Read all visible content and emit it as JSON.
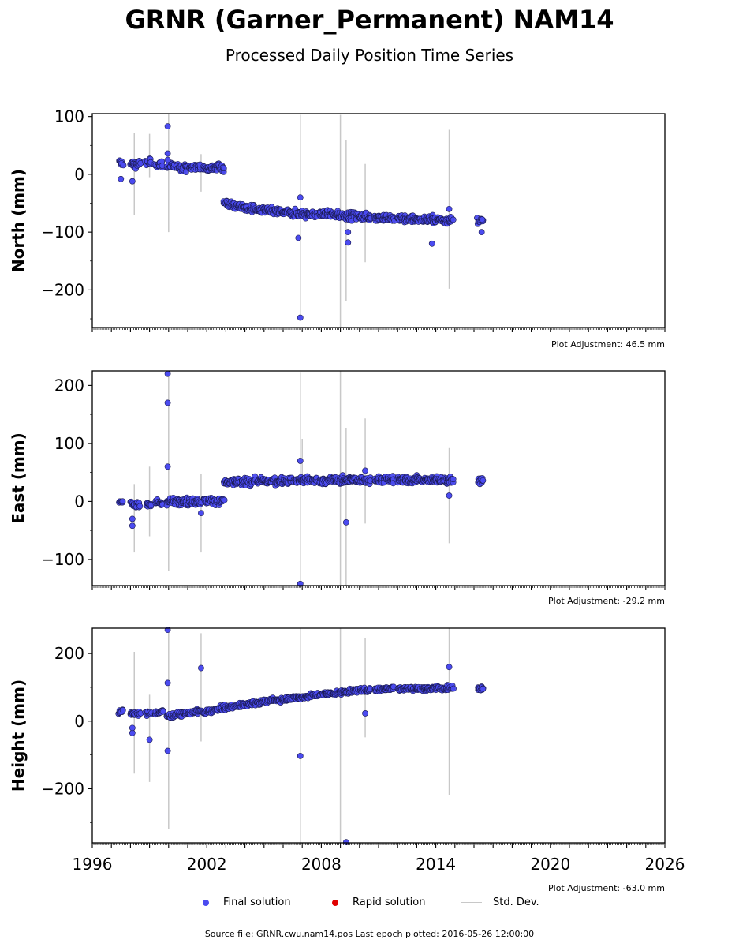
{
  "title": "GRNR (Garner_Permanent) NAM14",
  "subtitle": "Processed Daily Position Time Series",
  "footer": {
    "source": "Source file: GRNR.cwu.nam14.pos  Last epoch plotted: 2016-05-26 12:00:00"
  },
  "legend": {
    "final": "Final solution",
    "rapid": "Rapid solution",
    "stddev": "Std. Dev."
  },
  "colors": {
    "final": "#4b4bf0",
    "rapid": "#e00000",
    "stddev": "#c8c8c8"
  },
  "chart_data": [
    {
      "type": "scatter",
      "ylabel": "North (mm)",
      "adjustment": "Plot Adjustment: 46.5 mm",
      "xlim": [
        1996,
        2026
      ],
      "ylim": [
        -265,
        105
      ],
      "yticks": [
        100,
        0,
        -100,
        -200
      ],
      "ytick_labels": [
        "100",
        "0",
        "−100",
        "−200"
      ],
      "segments": [
        {
          "x": [
            1997.4,
            1997.6
          ],
          "y": [
            20,
            20
          ]
        },
        {
          "x": [
            1998.0,
            1998.5
          ],
          "y": [
            18,
            18
          ]
        },
        {
          "x": [
            1998.8,
            1999.1
          ],
          "y": [
            20,
            20
          ]
        },
        {
          "x": [
            1999.3,
            1999.7
          ],
          "y": [
            18,
            18
          ]
        },
        {
          "x": [
            1999.9,
            2000.6
          ],
          "y": [
            14,
            12
          ]
        },
        {
          "x": [
            2000.6,
            2001.7
          ],
          "y": [
            12,
            12
          ]
        },
        {
          "x": [
            2001.8,
            2002.9
          ],
          "y": [
            12,
            12
          ]
        },
        {
          "x": [
            2002.9,
            2003.5
          ],
          "y": [
            -48,
            -55
          ]
        },
        {
          "x": [
            2003.5,
            2005.0
          ],
          "y": [
            -55,
            -63
          ]
        },
        {
          "x": [
            2005.0,
            2006.8
          ],
          "y": [
            -63,
            -68
          ]
        },
        {
          "x": [
            2006.8,
            2007.8
          ],
          "y": [
            -68,
            -70
          ]
        },
        {
          "x": [
            2007.9,
            2009.5
          ],
          "y": [
            -68,
            -72
          ]
        },
        {
          "x": [
            2009.5,
            2010.6
          ],
          "y": [
            -72,
            -74
          ]
        },
        {
          "x": [
            2010.8,
            2011.8
          ],
          "y": [
            -74,
            -76
          ]
        },
        {
          "x": [
            2012.0,
            2013.2
          ],
          "y": [
            -76,
            -78
          ]
        },
        {
          "x": [
            2013.3,
            2014.9
          ],
          "y": [
            -78,
            -80
          ]
        },
        {
          "x": [
            2016.2,
            2016.5
          ],
          "y": [
            -80,
            -82
          ]
        }
      ],
      "outliers": [
        {
          "x": 1999.95,
          "y": 83
        },
        {
          "x": 1999.95,
          "y": 36
        },
        {
          "x": 1999.95,
          "y": 25
        },
        {
          "x": 1998.1,
          "y": -12
        },
        {
          "x": 1997.5,
          "y": -8
        },
        {
          "x": 2006.9,
          "y": -40
        },
        {
          "x": 2006.8,
          "y": -110
        },
        {
          "x": 2006.9,
          "y": -248
        },
        {
          "x": 2009.4,
          "y": -118
        },
        {
          "x": 2009.4,
          "y": -100
        },
        {
          "x": 2014.7,
          "y": -60
        },
        {
          "x": 2013.8,
          "y": -120
        },
        {
          "x": 2016.4,
          "y": -100
        }
      ],
      "errorbars": [
        {
          "x": 1998.2,
          "lo": -70,
          "hi": 72
        },
        {
          "x": 1999.0,
          "lo": -5,
          "hi": 70
        },
        {
          "x": 2000.0,
          "lo": -100,
          "hi": 105
        },
        {
          "x": 2001.7,
          "lo": -30,
          "hi": 35
        },
        {
          "x": 2006.9,
          "lo": -250,
          "hi": 103
        },
        {
          "x": 2009.0,
          "lo": -265,
          "hi": 103
        },
        {
          "x": 2009.3,
          "lo": -220,
          "hi": 60
        },
        {
          "x": 2010.3,
          "lo": -152,
          "hi": 18
        },
        {
          "x": 2014.7,
          "lo": -198,
          "hi": 77
        }
      ]
    },
    {
      "type": "scatter",
      "ylabel": "East (mm)",
      "adjustment": "Plot Adjustment: -29.2 mm",
      "xlim": [
        1996,
        2026
      ],
      "ylim": [
        -145,
        225
      ],
      "yticks": [
        200,
        100,
        0,
        -100
      ],
      "ytick_labels": [
        "200",
        "100",
        "0",
        "−100"
      ],
      "segments": [
        {
          "x": [
            1997.4,
            1997.6
          ],
          "y": [
            -2,
            -2
          ]
        },
        {
          "x": [
            1998.0,
            1998.5
          ],
          "y": [
            -4,
            -4
          ]
        },
        {
          "x": [
            1998.8,
            1999.1
          ],
          "y": [
            -4,
            -4
          ]
        },
        {
          "x": [
            1999.3,
            1999.7
          ],
          "y": [
            -3,
            -3
          ]
        },
        {
          "x": [
            1999.9,
            2000.6
          ],
          "y": [
            0,
            0
          ]
        },
        {
          "x": [
            2000.6,
            2001.7
          ],
          "y": [
            0,
            0
          ]
        },
        {
          "x": [
            2001.8,
            2002.9
          ],
          "y": [
            0,
            2
          ]
        },
        {
          "x": [
            2002.9,
            2003.5
          ],
          "y": [
            32,
            33
          ]
        },
        {
          "x": [
            2003.5,
            2005.0
          ],
          "y": [
            33,
            35
          ]
        },
        {
          "x": [
            2005.0,
            2006.8
          ],
          "y": [
            35,
            36
          ]
        },
        {
          "x": [
            2006.8,
            2007.8
          ],
          "y": [
            36,
            37
          ]
        },
        {
          "x": [
            2007.9,
            2009.5
          ],
          "y": [
            36,
            37
          ]
        },
        {
          "x": [
            2009.5,
            2010.6
          ],
          "y": [
            37,
            37
          ]
        },
        {
          "x": [
            2010.8,
            2011.8
          ],
          "y": [
            37,
            37
          ]
        },
        {
          "x": [
            2012.0,
            2013.2
          ],
          "y": [
            37,
            37
          ]
        },
        {
          "x": [
            2013.3,
            2014.9
          ],
          "y": [
            37,
            37
          ]
        },
        {
          "x": [
            2016.2,
            2016.5
          ],
          "y": [
            36,
            36
          ]
        }
      ],
      "outliers": [
        {
          "x": 1999.95,
          "y": 220
        },
        {
          "x": 1999.95,
          "y": 170
        },
        {
          "x": 1999.95,
          "y": 60
        },
        {
          "x": 1998.1,
          "y": -42
        },
        {
          "x": 1998.1,
          "y": -30
        },
        {
          "x": 2001.7,
          "y": -20
        },
        {
          "x": 2006.9,
          "y": 70
        },
        {
          "x": 2006.9,
          "y": -142
        },
        {
          "x": 2009.3,
          "y": -36
        },
        {
          "x": 2010.3,
          "y": 53
        },
        {
          "x": 2014.7,
          "y": 10
        }
      ],
      "errorbars": [
        {
          "x": 1998.2,
          "lo": -88,
          "hi": 30
        },
        {
          "x": 1999.0,
          "lo": -60,
          "hi": 60
        },
        {
          "x": 2000.0,
          "lo": -120,
          "hi": 225
        },
        {
          "x": 2001.7,
          "lo": -88,
          "hi": 48
        },
        {
          "x": 2006.9,
          "lo": -145,
          "hi": 222
        },
        {
          "x": 2007.0,
          "lo": 30,
          "hi": 108
        },
        {
          "x": 2009.0,
          "lo": -145,
          "hi": 225
        },
        {
          "x": 2009.3,
          "lo": -145,
          "hi": 127
        },
        {
          "x": 2010.3,
          "lo": -38,
          "hi": 143
        },
        {
          "x": 2014.7,
          "lo": -72,
          "hi": 92
        }
      ]
    },
    {
      "type": "scatter",
      "ylabel": "Height (mm)",
      "adjustment": "Plot Adjustment: -63.0 mm",
      "xlim": [
        1996,
        2026
      ],
      "ylim": [
        -360,
        275
      ],
      "yticks": [
        200,
        0,
        -200
      ],
      "ytick_labels": [
        "200",
        "0",
        "−200"
      ],
      "xticks": [
        1996,
        2002,
        2008,
        2014,
        2020,
        2026
      ],
      "xtick_labels": [
        "1996",
        "2002",
        "2008",
        "2014",
        "2020",
        "2026"
      ],
      "segments": [
        {
          "x": [
            1997.4,
            1997.6
          ],
          "y": [
            25,
            30
          ]
        },
        {
          "x": [
            1998.0,
            1998.5
          ],
          "y": [
            20,
            22
          ]
        },
        {
          "x": [
            1998.8,
            1999.1
          ],
          "y": [
            22,
            25
          ]
        },
        {
          "x": [
            1999.3,
            1999.7
          ],
          "y": [
            25,
            28
          ]
        },
        {
          "x": [
            1999.9,
            2000.6
          ],
          "y": [
            15,
            20
          ]
        },
        {
          "x": [
            2000.6,
            2001.7
          ],
          "y": [
            20,
            30
          ]
        },
        {
          "x": [
            2001.8,
            2002.9
          ],
          "y": [
            25,
            40
          ]
        },
        {
          "x": [
            2002.9,
            2003.5
          ],
          "y": [
            38,
            45
          ]
        },
        {
          "x": [
            2003.5,
            2005.0
          ],
          "y": [
            45,
            58
          ]
        },
        {
          "x": [
            2005.0,
            2006.8
          ],
          "y": [
            58,
            70
          ]
        },
        {
          "x": [
            2006.8,
            2007.8
          ],
          "y": [
            70,
            78
          ]
        },
        {
          "x": [
            2007.9,
            2009.5
          ],
          "y": [
            78,
            88
          ]
        },
        {
          "x": [
            2009.5,
            2010.6
          ],
          "y": [
            88,
            93
          ]
        },
        {
          "x": [
            2010.8,
            2011.8
          ],
          "y": [
            93,
            98
          ]
        },
        {
          "x": [
            2012.0,
            2013.2
          ],
          "y": [
            95,
            98
          ]
        },
        {
          "x": [
            2013.3,
            2014.9
          ],
          "y": [
            95,
            100
          ]
        },
        {
          "x": [
            2016.2,
            2016.5
          ],
          "y": [
            95,
            100
          ]
        }
      ],
      "outliers": [
        {
          "x": 1999.95,
          "y": 270
        },
        {
          "x": 1999.95,
          "y": 113
        },
        {
          "x": 1999.95,
          "y": -88
        },
        {
          "x": 1999.0,
          "y": -55
        },
        {
          "x": 1998.1,
          "y": -35
        },
        {
          "x": 1998.1,
          "y": -20
        },
        {
          "x": 2001.7,
          "y": 157
        },
        {
          "x": 2006.9,
          "y": -103
        },
        {
          "x": 2009.3,
          "y": -358
        },
        {
          "x": 2010.3,
          "y": 23
        },
        {
          "x": 2014.7,
          "y": 160
        }
      ],
      "errorbars": [
        {
          "x": 1998.2,
          "lo": -155,
          "hi": 205
        },
        {
          "x": 1999.0,
          "lo": -180,
          "hi": 78
        },
        {
          "x": 2000.0,
          "lo": -320,
          "hi": 275
        },
        {
          "x": 2001.7,
          "lo": -60,
          "hi": 260
        },
        {
          "x": 2006.9,
          "lo": -360,
          "hi": 275
        },
        {
          "x": 2009.0,
          "lo": -360,
          "hi": 275
        },
        {
          "x": 2010.3,
          "lo": -48,
          "hi": 245
        },
        {
          "x": 2014.7,
          "lo": -220,
          "hi": 275
        }
      ]
    }
  ]
}
